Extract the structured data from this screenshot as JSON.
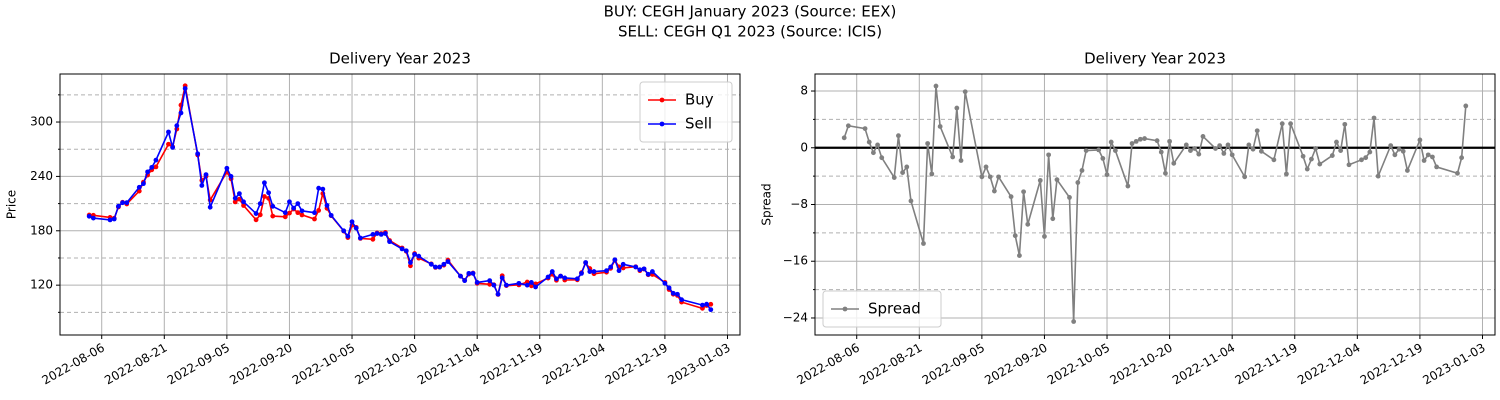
{
  "suptitle": [
    "BUY: CEGH January 2023 (Source: EEX)",
    "SELL: CEGH Q1 2023 (Source: ICIS)"
  ],
  "chart_data": [
    {
      "type": "line",
      "title": "Delivery Year 2023",
      "ylabel": "Price",
      "x": [
        "2022-08-03",
        "2022-08-04",
        "2022-08-08",
        "2022-08-09",
        "2022-08-10",
        "2022-08-11",
        "2022-08-12",
        "2022-08-15",
        "2022-08-16",
        "2022-08-17",
        "2022-08-18",
        "2022-08-19",
        "2022-08-22",
        "2022-08-23",
        "2022-08-24",
        "2022-08-25",
        "2022-08-26",
        "2022-08-29",
        "2022-08-30",
        "2022-08-31",
        "2022-09-01",
        "2022-09-05",
        "2022-09-06",
        "2022-09-07",
        "2022-09-08",
        "2022-09-09",
        "2022-09-12",
        "2022-09-13",
        "2022-09-14",
        "2022-09-15",
        "2022-09-16",
        "2022-09-19",
        "2022-09-20",
        "2022-09-21",
        "2022-09-22",
        "2022-09-23",
        "2022-09-26",
        "2022-09-27",
        "2022-09-28",
        "2022-09-29",
        "2022-09-30",
        "2022-10-03",
        "2022-10-04",
        "2022-10-05",
        "2022-10-06",
        "2022-10-07",
        "2022-10-10",
        "2022-10-11",
        "2022-10-12",
        "2022-10-13",
        "2022-10-14",
        "2022-10-17",
        "2022-10-18",
        "2022-10-19",
        "2022-10-20",
        "2022-10-21",
        "2022-10-24",
        "2022-10-25",
        "2022-10-26",
        "2022-10-27",
        "2022-10-28",
        "2022-10-31",
        "2022-11-01",
        "2022-11-02",
        "2022-11-03",
        "2022-11-04",
        "2022-11-07",
        "2022-11-08",
        "2022-11-09",
        "2022-11-10",
        "2022-11-11",
        "2022-11-14",
        "2022-11-16",
        "2022-11-17",
        "2022-11-18",
        "2022-11-21",
        "2022-11-22",
        "2022-11-23",
        "2022-11-24",
        "2022-11-25",
        "2022-11-28",
        "2022-11-29",
        "2022-11-30",
        "2022-12-01",
        "2022-12-02",
        "2022-12-05",
        "2022-12-06",
        "2022-12-07",
        "2022-12-08",
        "2022-12-09",
        "2022-12-12",
        "2022-12-13",
        "2022-12-14",
        "2022-12-15",
        "2022-12-16",
        "2022-12-19",
        "2022-12-20",
        "2022-12-21",
        "2022-12-22",
        "2022-12-23",
        "2022-12-28",
        "2022-12-29",
        "2022-12-30"
      ],
      "series": [
        {
          "name": "Buy",
          "color": "#ff0000",
          "values": [
            197.4,
            197.1,
            194.7,
            193.8,
            206.3,
            211.4,
            209.6,
            223.8,
            233.7,
            241.5,
            247.3,
            250.5,
            275.5,
            272.6,
            292.3,
            318.7,
            340.0,
            263.7,
            235.6,
            240.2,
            213.9,
            244.9,
            237.3,
            211.9,
            214.9,
            207.9,
            192.1,
            197.6,
            217.8,
            215.8,
            196.2,
            195.4,
            199.5,
            204.0,
            200.0,
            197.5,
            193.0,
            202.5,
            221.1,
            204.8,
            196.6,
            179.7,
            172.5,
            186.2,
            183.8,
            171.6,
            170.6,
            177.6,
            176.9,
            178.2,
            169.3,
            161.0,
            157.4,
            141.4,
            154.9,
            149.8,
            143.4,
            139.6,
            139.9,
            142.1,
            147.6,
            129.9,
            125.3,
            132.2,
            133.4,
            122.0,
            120.9,
            120.4,
            109.8,
            130.4,
            119.5,
            120.3,
            123.4,
            119.3,
            121.4,
            127.8,
            132.0,
            125.4,
            129.9,
            125.7,
            125.9,
            133.8,
            144.6,
            138.3,
            132.6,
            134.3,
            138.6,
            147.4,
            140.2,
            139.0,
            140.3,
            136.0,
            137.8,
            131.5,
            131.8,
            123.1,
            115.2,
            110.0,
            108.7,
            101.3,
            94.4,
            97.6,
            98.9
          ]
        },
        {
          "name": "Sell",
          "color": "#0000ff",
          "values": [
            196,
            194,
            192,
            193,
            207,
            211,
            211,
            228,
            232,
            245,
            250,
            258,
            289,
            272,
            296,
            310,
            337,
            265,
            230,
            242,
            206,
            249,
            240,
            216,
            221,
            212,
            199,
            210,
            233,
            222,
            207,
            200,
            212,
            205,
            210,
            202,
            200,
            227,
            226,
            208,
            197,
            180,
            174,
            190,
            183,
            172,
            176,
            177,
            176,
            177,
            168,
            160,
            158,
            145,
            154,
            152,
            143,
            140,
            140,
            143,
            146,
            130,
            125,
            133,
            133,
            123,
            125,
            120,
            110,
            128,
            120,
            122,
            120,
            123,
            118,
            129,
            135,
            127,
            130,
            128,
            127,
            133,
            145,
            135,
            135,
            136,
            140,
            148,
            136,
            143,
            140,
            137,
            138,
            132,
            135,
            122,
            117,
            111,
            110,
            104,
            98,
            99,
            93
          ]
        }
      ],
      "xlim": [
        "2022-07-27",
        "2023-01-06"
      ],
      "xticks": [
        "2022-08-06",
        "2022-08-21",
        "2022-09-05",
        "2022-09-20",
        "2022-10-05",
        "2022-10-20",
        "2022-11-04",
        "2022-11-19",
        "2022-12-04",
        "2022-12-19",
        "2023-01-03"
      ],
      "ylim": [
        65,
        353
      ],
      "yticks": [
        120,
        180,
        240,
        300
      ],
      "minor_yticks": [
        90,
        150,
        210,
        270,
        330
      ],
      "grid": true,
      "legend": "upper right"
    },
    {
      "type": "line",
      "title": "Delivery Year 2023",
      "ylabel": "Spread",
      "x": [
        "2022-08-03",
        "2022-08-04",
        "2022-08-08",
        "2022-08-09",
        "2022-08-10",
        "2022-08-11",
        "2022-08-12",
        "2022-08-15",
        "2022-08-16",
        "2022-08-17",
        "2022-08-18",
        "2022-08-19",
        "2022-08-22",
        "2022-08-23",
        "2022-08-24",
        "2022-08-25",
        "2022-08-26",
        "2022-08-29",
        "2022-08-30",
        "2022-08-31",
        "2022-09-01",
        "2022-09-05",
        "2022-09-06",
        "2022-09-07",
        "2022-09-08",
        "2022-09-09",
        "2022-09-12",
        "2022-09-13",
        "2022-09-14",
        "2022-09-15",
        "2022-09-16",
        "2022-09-19",
        "2022-09-20",
        "2022-09-21",
        "2022-09-22",
        "2022-09-23",
        "2022-09-26",
        "2022-09-27",
        "2022-09-28",
        "2022-09-29",
        "2022-09-30",
        "2022-10-03",
        "2022-10-04",
        "2022-10-05",
        "2022-10-06",
        "2022-10-07",
        "2022-10-10",
        "2022-10-11",
        "2022-10-12",
        "2022-10-13",
        "2022-10-14",
        "2022-10-17",
        "2022-10-18",
        "2022-10-19",
        "2022-10-20",
        "2022-10-21",
        "2022-10-24",
        "2022-10-25",
        "2022-10-26",
        "2022-10-27",
        "2022-10-28",
        "2022-10-31",
        "2022-11-01",
        "2022-11-02",
        "2022-11-03",
        "2022-11-04",
        "2022-11-07",
        "2022-11-08",
        "2022-11-09",
        "2022-11-10",
        "2022-11-11",
        "2022-11-14",
        "2022-11-16",
        "2022-11-17",
        "2022-11-18",
        "2022-11-21",
        "2022-11-22",
        "2022-11-23",
        "2022-11-24",
        "2022-11-25",
        "2022-11-28",
        "2022-11-29",
        "2022-11-30",
        "2022-12-01",
        "2022-12-02",
        "2022-12-05",
        "2022-12-06",
        "2022-12-07",
        "2022-12-08",
        "2022-12-09",
        "2022-12-12",
        "2022-12-13",
        "2022-12-14",
        "2022-12-15",
        "2022-12-16",
        "2022-12-19",
        "2022-12-20",
        "2022-12-21",
        "2022-12-22",
        "2022-12-23",
        "2022-12-28",
        "2022-12-29",
        "2022-12-30"
      ],
      "series": [
        {
          "name": "Spread",
          "color": "#808080",
          "values": [
            1.4,
            3.1,
            2.7,
            0.8,
            -0.7,
            0.4,
            -1.4,
            -4.2,
            1.7,
            -3.5,
            -2.7,
            -7.5,
            -13.5,
            0.6,
            -3.7,
            8.7,
            3.0,
            -1.3,
            5.6,
            -1.8,
            7.9,
            -4.1,
            -2.7,
            -4.1,
            -6.1,
            -4.1,
            -6.9,
            -12.4,
            -15.2,
            -6.2,
            -10.8,
            -4.6,
            -12.5,
            -1.0,
            -10.0,
            -4.5,
            -7.0,
            -24.5,
            -4.9,
            -3.2,
            -0.4,
            -0.3,
            -1.5,
            -3.8,
            0.8,
            -0.4,
            -5.4,
            0.6,
            0.9,
            1.2,
            1.3,
            1.0,
            -0.6,
            -3.6,
            0.9,
            -2.2,
            0.4,
            -0.4,
            -0.1,
            -0.9,
            1.6,
            -0.1,
            0.3,
            -0.8,
            0.4,
            -1.0,
            -4.1,
            0.4,
            -0.2,
            2.4,
            -0.5,
            -1.7,
            3.4,
            -3.7,
            3.4,
            -1.2,
            -3.0,
            -1.6,
            -0.1,
            -2.3,
            -1.1,
            0.8,
            -0.4,
            3.3,
            -2.4,
            -1.7,
            -1.4,
            -0.6,
            4.2,
            -4.0,
            0.3,
            -1.0,
            -0.2,
            -0.5,
            -3.2,
            1.1,
            -1.8,
            -1.0,
            -1.3,
            -2.7,
            -3.6,
            -1.4,
            5.9
          ]
        }
      ],
      "xlim": [
        "2022-07-27",
        "2023-01-06"
      ],
      "xticks": [
        "2022-08-06",
        "2022-08-21",
        "2022-09-05",
        "2022-09-20",
        "2022-10-05",
        "2022-10-20",
        "2022-11-04",
        "2022-11-19",
        "2022-12-04",
        "2022-12-19",
        "2023-01-03"
      ],
      "ylim": [
        -26.4,
        10.4
      ],
      "yticks": [
        8,
        0,
        {
          "value": -8,
          "label": "−8"
        },
        {
          "value": -16,
          "label": "−16"
        },
        {
          "value": -24,
          "label": "−24"
        }
      ],
      "minor_yticks": [
        4,
        -4,
        -12,
        -20
      ],
      "hline": {
        "value": 0,
        "color": "#000000"
      },
      "grid": true,
      "legend": "lower left"
    }
  ]
}
